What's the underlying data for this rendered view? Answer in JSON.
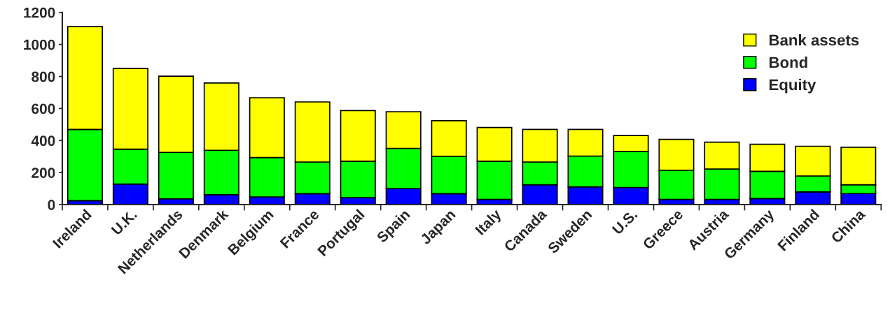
{
  "chart_data": {
    "type": "bar",
    "stacked": true,
    "categories": [
      "Ireland",
      "U.K.",
      "Netherlands",
      "Denmark",
      "Belgium",
      "France",
      "Portugal",
      "Spain",
      "Japan",
      "Italy",
      "Canada",
      "Sweden",
      "U.S.",
      "Greece",
      "Austria",
      "Germany",
      "Finland",
      "China"
    ],
    "series": [
      {
        "name": "Equity",
        "color": "#0000ff",
        "values": [
          25,
          128,
          36,
          62,
          48,
          68,
          43,
          100,
          68,
          32,
          124,
          111,
          107,
          32,
          32,
          38,
          79,
          69
        ]
      },
      {
        "name": "Bond",
        "color": "#00ff00",
        "values": [
          444,
          218,
          290,
          277,
          246,
          198,
          228,
          251,
          234,
          239,
          142,
          192,
          225,
          183,
          190,
          170,
          100,
          55
        ]
      },
      {
        "name": "Bank assets",
        "color": "#ffff00",
        "values": [
          642,
          505,
          476,
          420,
          373,
          375,
          316,
          229,
          222,
          210,
          203,
          166,
          99,
          192,
          168,
          169,
          185,
          234
        ]
      }
    ],
    "ylim": [
      0,
      1200
    ],
    "yticks": [
      0,
      200,
      400,
      600,
      800,
      1000,
      1200
    ],
    "grid": false,
    "legend": "top right"
  }
}
